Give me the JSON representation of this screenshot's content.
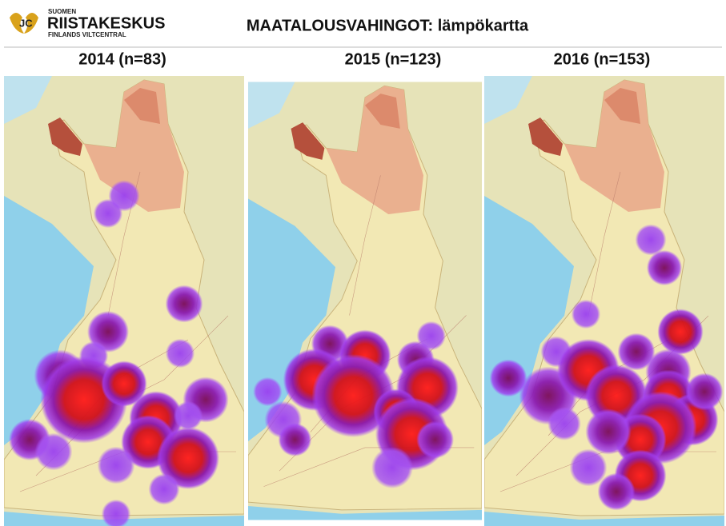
{
  "header": {
    "logo": {
      "top": "SUOMEN",
      "main": "RIISTAKESKUS",
      "bottom": "FINLANDS VILTCENTRAL"
    },
    "title": "MAATALOUSVAHINGOT: lämpökartta"
  },
  "panels": [
    {
      "label": "2014 (n=83)"
    },
    {
      "label": "2015 (n=123)"
    },
    {
      "label": "2016 (n=153)"
    }
  ]
}
